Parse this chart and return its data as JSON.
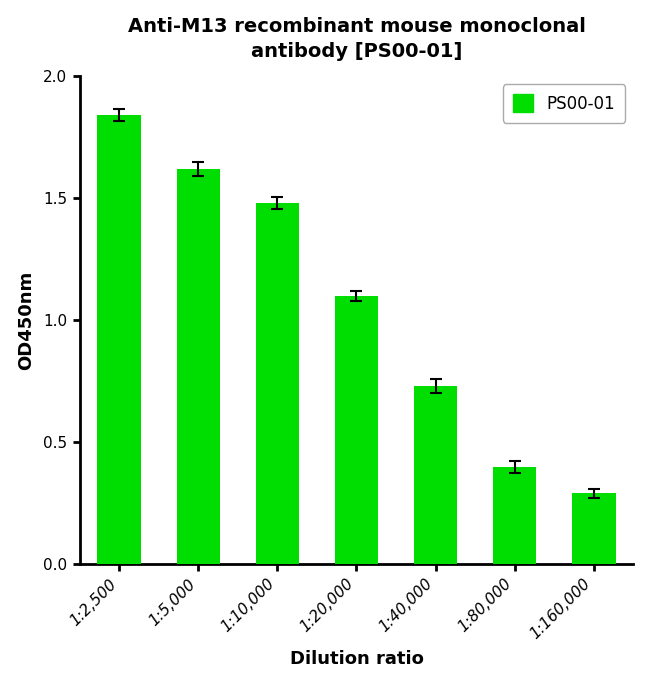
{
  "title": "Anti-M13 recombinant mouse monoclonal\nantibody [PS00-01]",
  "xlabel": "Dilution ratio",
  "ylabel": "OD450nm",
  "categories": [
    "1:2,500",
    "1:5,000",
    "1:10,000",
    "1:20,000",
    "1:40,000",
    "1:80,000",
    "1:160,000"
  ],
  "values": [
    1.84,
    1.62,
    1.48,
    1.1,
    0.73,
    0.4,
    0.29
  ],
  "errors": [
    0.025,
    0.03,
    0.025,
    0.02,
    0.03,
    0.025,
    0.02
  ],
  "bar_color": "#00DD00",
  "error_color": "#000000",
  "ylim": [
    0,
    2.0
  ],
  "yticks": [
    0.0,
    0.5,
    1.0,
    1.5,
    2.0
  ],
  "legend_label": "PS00-01",
  "background_color": "#ffffff",
  "title_fontsize": 14,
  "axis_label_fontsize": 13,
  "tick_fontsize": 11,
  "legend_fontsize": 12,
  "bar_width": 0.55,
  "figsize": [
    6.5,
    6.85
  ]
}
